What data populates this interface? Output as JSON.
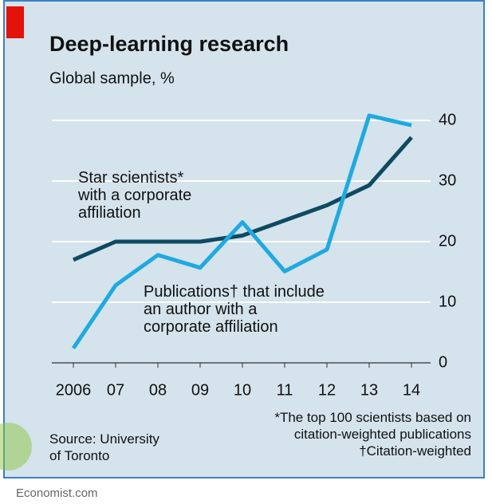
{
  "chart_data": {
    "type": "line",
    "title": "Deep-learning research",
    "subtitle": "Global sample, %",
    "categories": [
      "2006",
      "07",
      "08",
      "09",
      "10",
      "11",
      "12",
      "13",
      "14"
    ],
    "series": [
      {
        "name": "Star scientists*\nwith a corporate\naffiliation",
        "color": "#0e4a62",
        "values": [
          17,
          20,
          20,
          20,
          21,
          23.5,
          26,
          29.3,
          37.2
        ]
      },
      {
        "name": "Publications† that include\nan author with a\ncorporate affiliation",
        "color": "#1fa9e1",
        "values": [
          2.4,
          12.8,
          17.8,
          15.7,
          23.2,
          15.1,
          18.7,
          40.8,
          39.2
        ]
      }
    ],
    "ylim": [
      0,
      40
    ],
    "yticks": [
      0,
      10,
      20,
      30,
      40
    ],
    "grid": true,
    "y_axis_side": "right",
    "source": "Source: University\nof Toronto",
    "notes": "*The top 100 scientists based on\ncitation-weighted publications\n†Citation-weighted",
    "footer": "Economist.com"
  }
}
